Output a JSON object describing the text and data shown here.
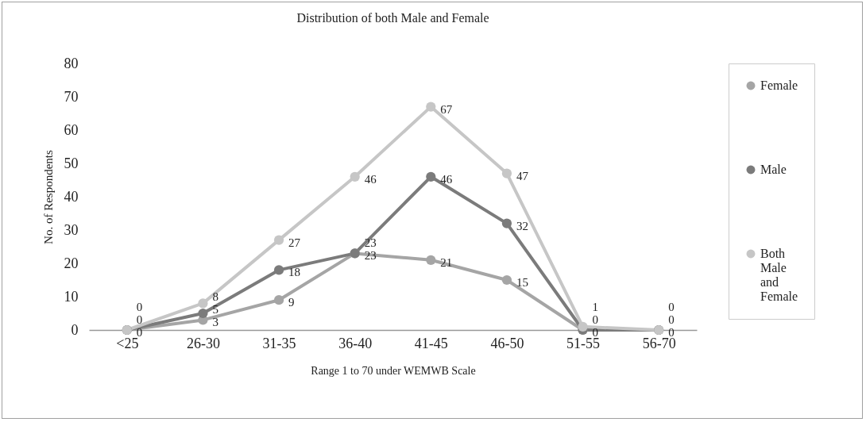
{
  "chart_data": {
    "type": "line",
    "title": "Distribution of both Male and Female",
    "xlabel": "Range 1 to 70 under WEMWB Scale",
    "ylabel": "No. of Respondents",
    "categories": [
      "<25",
      "26-30",
      "31-35",
      "36-40",
      "41-45",
      "46-50",
      "51-55",
      "56-70"
    ],
    "series": [
      {
        "name": "Female",
        "color": "#a5a5a5",
        "values": [
          0,
          3,
          9,
          23,
          21,
          15,
          0,
          0
        ]
      },
      {
        "name": "Male",
        "color": "#7b7b7b",
        "values": [
          0,
          5,
          18,
          23,
          46,
          32,
          0,
          0
        ]
      },
      {
        "name": "Both Male and Female",
        "color": "#c6c6c6",
        "values": [
          0,
          8,
          27,
          46,
          67,
          47,
          1,
          0
        ]
      }
    ],
    "ylim": [
      0,
      80
    ],
    "yticks": [
      0,
      10,
      20,
      30,
      40,
      50,
      60,
      70,
      80
    ],
    "grid": false,
    "legend": "right",
    "marker": "circle",
    "line_style": "solid",
    "data_labels": true
  }
}
